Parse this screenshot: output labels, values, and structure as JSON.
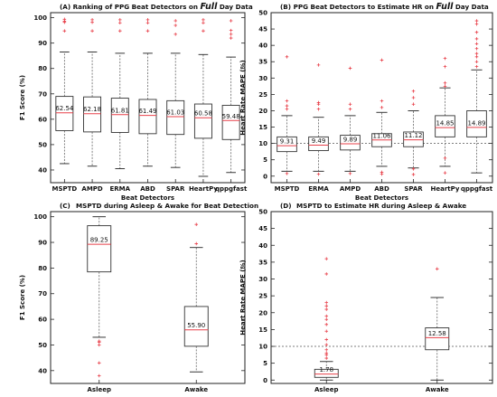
{
  "colors": {
    "box": "#333333",
    "median": "#e8404a",
    "outlier": "#e8404a",
    "whisker": "#666666",
    "reference": "#555555"
  },
  "chart_data": [
    {
      "type": "box",
      "panel_label": "(A)",
      "title_pre": "Ranking of PPG Beat Detectors on",
      "title_emph": "Full",
      "title_post": "Day Data",
      "xlabel": "Beat Detectors",
      "ylabel": "F1 Score (%)",
      "ylim": [
        35,
        102
      ],
      "yticks": [
        40,
        50,
        60,
        70,
        80,
        90,
        100
      ],
      "series": [
        {
          "category": "MSPTD",
          "median": 62.54,
          "median_label": "62.54",
          "q1": 55.5,
          "q3": 69.0,
          "whisker_low": 42.5,
          "whisker_high": 86.5,
          "outliers": [
            94.8,
            98.2,
            98.6,
            99.4
          ]
        },
        {
          "category": "AMPD",
          "median": 62.18,
          "median_label": "62.18",
          "q1": 55.0,
          "q3": 68.8,
          "whisker_low": 41.5,
          "whisker_high": 86.5,
          "outliers": [
            94.8,
            98.2,
            99.2
          ]
        },
        {
          "category": "ERMA",
          "median": 61.81,
          "median_label": "61.81",
          "q1": 54.8,
          "q3": 68.3,
          "whisker_low": 40.5,
          "whisker_high": 86.0,
          "outliers": [
            94.8,
            98.0,
            99.2
          ]
        },
        {
          "category": "ABD",
          "median": 61.49,
          "median_label": "61.49",
          "q1": 54.3,
          "q3": 67.8,
          "whisker_low": 41.5,
          "whisker_high": 86.0,
          "outliers": [
            94.8,
            98.0,
            99.2
          ]
        },
        {
          "category": "SPAR",
          "median": 61.03,
          "median_label": "61.03",
          "q1": 54.0,
          "q3": 67.3,
          "whisker_low": 41.0,
          "whisker_high": 86.0,
          "outliers": [
            93.5,
            97.0,
            98.8
          ]
        },
        {
          "category": "HeartPy",
          "median": 60.58,
          "median_label": "60.58",
          "q1": 52.5,
          "q3": 66.0,
          "whisker_low": 37.5,
          "whisker_high": 85.5,
          "outliers": [
            94.8,
            98.0,
            99.2
          ]
        },
        {
          "category": "qppgfast",
          "median": 59.48,
          "median_label": "59.48",
          "q1": 52.0,
          "q3": 65.5,
          "whisker_low": 39.0,
          "whisker_high": 84.5,
          "outliers": [
            92.0,
            93.5,
            95.0,
            98.8
          ]
        }
      ]
    },
    {
      "type": "box",
      "panel_label": "(B)",
      "title_pre": "PPG Beat Detectors to Estimate HR on",
      "title_emph": "Full",
      "title_post": "Day Data",
      "xlabel": "Beat Detectors",
      "ylabel": "Heart Rate MAPE (%)",
      "ylim": [
        -2,
        50
      ],
      "yticks": [
        0,
        5,
        10,
        15,
        20,
        25,
        30,
        35,
        40,
        45,
        50
      ],
      "reference_line": 10,
      "series": [
        {
          "category": "MSPTD",
          "median": 9.31,
          "median_label": "9.31",
          "q1": 7.5,
          "q3": 12.0,
          "whisker_low": 1.5,
          "whisker_high": 18.5,
          "outliers": [
            0.8,
            20.5,
            21.5,
            23.0,
            36.5
          ]
        },
        {
          "category": "ERMA",
          "median": 9.49,
          "median_label": "9.49",
          "q1": 7.8,
          "q3": 12.0,
          "whisker_low": 1.5,
          "whisker_high": 18.0,
          "outliers": [
            0.6,
            20.5,
            22.0,
            22.5,
            34.0
          ]
        },
        {
          "category": "AMPD",
          "median": 9.89,
          "median_label": "9.89",
          "q1": 8.0,
          "q3": 12.5,
          "whisker_low": 1.5,
          "whisker_high": 18.5,
          "outliers": [
            0.8,
            20.5,
            22.0,
            33.0
          ]
        },
        {
          "category": "ABD",
          "median": 11.06,
          "median_label": "11.06",
          "q1": 9.0,
          "q3": 13.0,
          "whisker_low": 3.0,
          "whisker_high": 19.5,
          "outliers": [
            0.6,
            1.2,
            21.0,
            23.0,
            35.5
          ]
        },
        {
          "category": "SPAR",
          "median": 11.12,
          "median_label": "11.12",
          "q1": 9.0,
          "q3": 13.5,
          "whisker_low": 2.5,
          "whisker_high": 20.0,
          "outliers": [
            0.5,
            2.2,
            22.0,
            24.0,
            26.0
          ]
        },
        {
          "category": "HeartPy",
          "median": 14.85,
          "median_label": "14.85",
          "q1": 12.0,
          "q3": 18.5,
          "whisker_low": 3.0,
          "whisker_high": 27.0,
          "outliers": [
            1.0,
            5.5,
            27.5,
            28.5,
            33.5,
            36.0
          ]
        },
        {
          "category": "qppgfast",
          "median": 14.89,
          "median_label": "14.89",
          "q1": 12.0,
          "q3": 20.0,
          "whisker_low": 1.0,
          "whisker_high": 32.5,
          "outliers": [
            33.5,
            35.0,
            36.5,
            37.5,
            39.0,
            40.5,
            42.0,
            44.0,
            46.5,
            47.5
          ]
        }
      ]
    },
    {
      "type": "box",
      "panel_label": "(C)",
      "title": "MSPTD during Asleep & Awake for Beat Detection",
      "xlabel": "",
      "ylabel": "F1 Score (%)",
      "ylim": [
        35,
        102
      ],
      "yticks": [
        40,
        50,
        60,
        70,
        80,
        90,
        100
      ],
      "series": [
        {
          "category": "Asleep",
          "median": 89.25,
          "median_label": "89.25",
          "q1": 78.5,
          "q3": 96.5,
          "whisker_low": 53.0,
          "whisker_high": 100.0,
          "outliers": [
            38.0,
            43.0,
            50.0,
            51.0,
            51.5
          ]
        },
        {
          "category": "Awake",
          "median": 55.9,
          "median_label": "55.90",
          "q1": 49.5,
          "q3": 65.0,
          "whisker_low": 39.5,
          "whisker_high": 88.0,
          "outliers": [
            89.5,
            97.0
          ]
        }
      ]
    },
    {
      "type": "box",
      "panel_label": "(D)",
      "title": "MSPTD to Estimate HR during Asleep & Awake",
      "xlabel": "",
      "ylabel": "Heart Rate MAPE (%)",
      "ylim": [
        -1,
        50
      ],
      "yticks": [
        0,
        5,
        10,
        15,
        20,
        25,
        30,
        35,
        40,
        45,
        50
      ],
      "reference_line": 10,
      "series": [
        {
          "category": "Asleep",
          "median": 1.78,
          "median_label": "1.78",
          "q1": 0.8,
          "q3": 3.2,
          "whisker_low": 0,
          "whisker_high": 5.5,
          "outliers": [
            6.5,
            7.5,
            8.0,
            9.0,
            10.5,
            12.0,
            14.5,
            16.5,
            18.0,
            19.0,
            21.0,
            22.0,
            23.0,
            31.5,
            36.0
          ]
        },
        {
          "category": "Awake",
          "median": 12.58,
          "median_label": "12.58",
          "q1": 9.0,
          "q3": 15.5,
          "whisker_low": 0,
          "whisker_high": 24.5,
          "outliers": [
            33.0
          ]
        }
      ]
    }
  ]
}
